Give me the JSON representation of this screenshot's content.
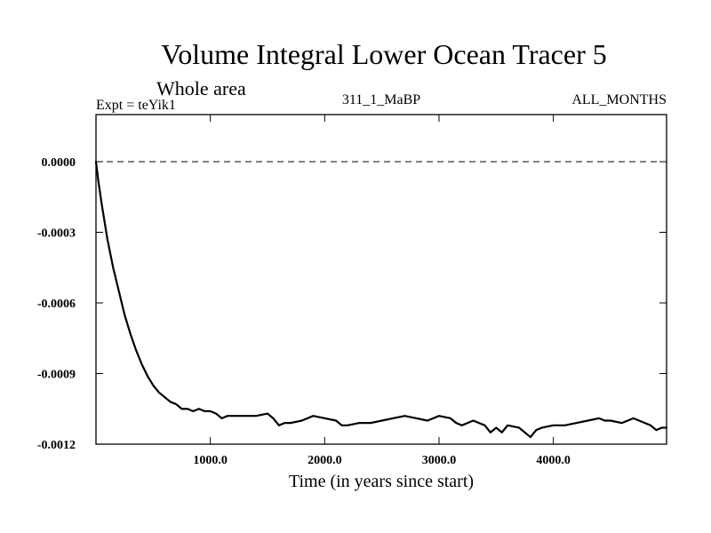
{
  "chart_data": {
    "type": "line",
    "title": "Volume Integral Lower Ocean Tracer 5",
    "subtitle": "Whole area",
    "experiment_label": "Expt = teYik1",
    "center_label": "311_1_MaBP",
    "right_label": "ALL_MONTHS",
    "xlabel": "Time (in years since start)",
    "ylabel": "",
    "xlim": [
      0,
      4990
    ],
    "ylim": [
      -0.0012,
      0.0002
    ],
    "x_ticks": [
      1000,
      2000,
      3000,
      4000
    ],
    "x_tick_labels": [
      "1000.0",
      "2000.0",
      "3000.0",
      "4000.0"
    ],
    "y_ticks": [
      0.0,
      -0.0003,
      -0.0006,
      -0.0009,
      -0.0012
    ],
    "y_tick_labels": [
      "0.0000",
      "-0.0003",
      "-0.0006",
      "-0.0009",
      "-0.0012"
    ],
    "reference_line": {
      "y": 0.0,
      "style": "dashed"
    },
    "grid": false,
    "series": [
      {
        "name": "Volume Integral Lower Ocean Tracer 5",
        "x": [
          0,
          20,
          50,
          100,
          150,
          200,
          250,
          300,
          350,
          400,
          450,
          500,
          550,
          600,
          650,
          700,
          750,
          800,
          850,
          900,
          950,
          1000,
          1050,
          1100,
          1150,
          1200,
          1300,
          1400,
          1500,
          1550,
          1600,
          1650,
          1700,
          1800,
          1900,
          2000,
          2100,
          2150,
          2200,
          2300,
          2400,
          2500,
          2600,
          2700,
          2800,
          2900,
          3000,
          3100,
          3150,
          3200,
          3250,
          3300,
          3400,
          3450,
          3500,
          3550,
          3600,
          3700,
          3750,
          3800,
          3850,
          3900,
          4000,
          4100,
          4200,
          4300,
          4400,
          4450,
          4500,
          4600,
          4700,
          4800,
          4850,
          4900,
          4950,
          4990
        ],
        "values": [
          0.0,
          -8e-05,
          -0.00018,
          -0.00033,
          -0.00045,
          -0.00055,
          -0.00065,
          -0.00073,
          -0.0008,
          -0.00086,
          -0.00091,
          -0.00095,
          -0.00098,
          -0.001,
          -0.00102,
          -0.00103,
          -0.00105,
          -0.00105,
          -0.00106,
          -0.00105,
          -0.00106,
          -0.00106,
          -0.00107,
          -0.00109,
          -0.00108,
          -0.00108,
          -0.00108,
          -0.00108,
          -0.00107,
          -0.00109,
          -0.00112,
          -0.00111,
          -0.00111,
          -0.0011,
          -0.00108,
          -0.00109,
          -0.0011,
          -0.00112,
          -0.00112,
          -0.00111,
          -0.00111,
          -0.0011,
          -0.00109,
          -0.00108,
          -0.00109,
          -0.0011,
          -0.00108,
          -0.00109,
          -0.00111,
          -0.00112,
          -0.00111,
          -0.0011,
          -0.00112,
          -0.00115,
          -0.00113,
          -0.00115,
          -0.00112,
          -0.00113,
          -0.00115,
          -0.00117,
          -0.00114,
          -0.00113,
          -0.00112,
          -0.00112,
          -0.00111,
          -0.0011,
          -0.00109,
          -0.0011,
          -0.0011,
          -0.00111,
          -0.00109,
          -0.00111,
          -0.00112,
          -0.00114,
          -0.00113,
          -0.00113
        ]
      }
    ]
  }
}
